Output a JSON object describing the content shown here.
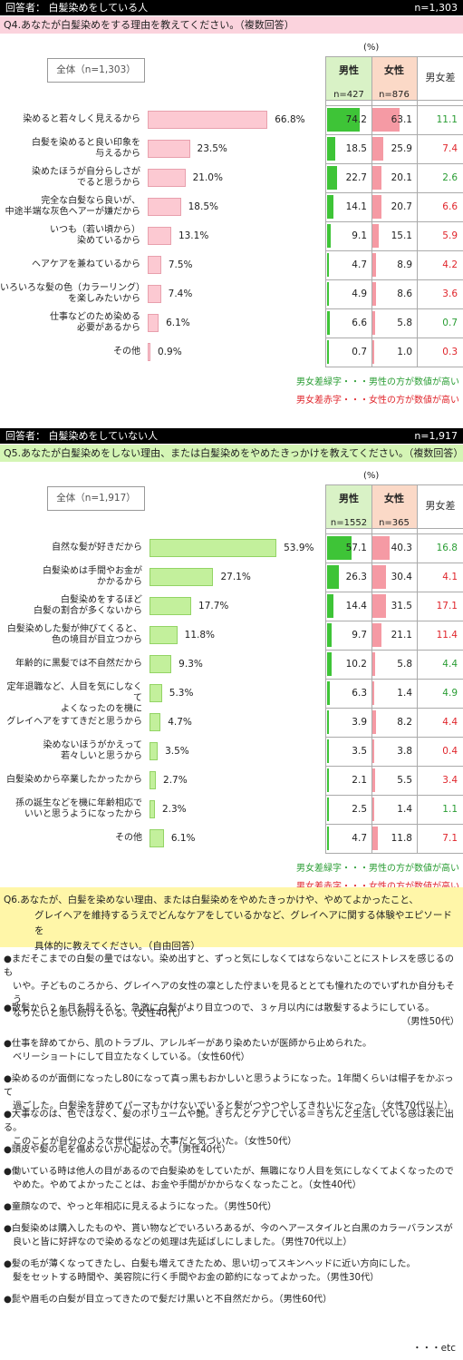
{
  "colors": {
    "male_bar": "#3ec437",
    "female_bar": "#f59aa4",
    "q4_bar": "#fcc9d2",
    "q5_bar": "#c3f09c",
    "diff_male": "#2a9d34",
    "diff_female": "#e0262c"
  },
  "chart_data": [
    {
      "type": "bar",
      "header": {
        "respondents": "回答者： 白髪染めをしている人",
        "n": "n=1,303"
      },
      "title": "Q4.あなたが白髪染めをする理由を教えてください。（複数回答）",
      "unit": "(%)",
      "total_label": "全体（n=1,303）",
      "male_label": "男性",
      "male_n": "n=427",
      "female_label": "女性",
      "female_n": "n=876",
      "diff_label": "男女差",
      "categories": [
        [
          "染めると若々しく見えるから"
        ],
        [
          "白髪を染めると良い印象を",
          "与えるから"
        ],
        [
          "染めたほうが自分らしさが",
          "でると思うから"
        ],
        [
          "完全な白髪なら良いが、",
          "中途半端な灰色ヘアーが嫌だから"
        ],
        [
          "いつも（若い頃から）",
          "染めているから"
        ],
        [
          "ヘアケアを兼ねているから"
        ],
        [
          "いろいろな髪の色（カラーリング）",
          "を楽しみたいから"
        ],
        [
          "仕事などのため染める",
          "必要があるから"
        ],
        [
          "その他"
        ]
      ],
      "total": [
        66.8,
        23.5,
        21.0,
        18.5,
        13.1,
        7.5,
        7.4,
        6.1,
        0.9
      ],
      "total_labels": [
        "66.8%",
        "23.5%",
        "21.0%",
        "18.5%",
        "13.1%",
        "7.5%",
        "7.4%",
        "6.1%",
        "0.9%"
      ],
      "male": [
        74.2,
        18.5,
        22.7,
        14.1,
        9.1,
        4.7,
        4.9,
        6.6,
        0.7
      ],
      "male_labels": [
        "74.2",
        "18.5",
        "22.7",
        "14.1",
        "9.1",
        "4.7",
        "4.9",
        "6.6",
        "0.7"
      ],
      "female": [
        63.1,
        25.9,
        20.1,
        20.7,
        15.1,
        8.9,
        8.6,
        5.8,
        1.0
      ],
      "female_labels": [
        "63.1",
        "25.9",
        "20.1",
        "20.7",
        "15.1",
        "8.9",
        "8.6",
        "5.8",
        "1.0"
      ],
      "diff": [
        11.1,
        7.4,
        2.6,
        6.6,
        5.9,
        4.2,
        3.6,
        0.7,
        0.3
      ],
      "diff_labels": [
        "11.1",
        "7.4",
        "2.6",
        "6.6",
        "5.9",
        "4.2",
        "3.6",
        "0.7",
        "0.3"
      ],
      "diff_higher": [
        "male",
        "female",
        "male",
        "female",
        "female",
        "female",
        "female",
        "male",
        "female"
      ],
      "note_green": "男女差緑字・・・男性の方が数値が高い",
      "note_red": "男女差赤字・・・女性の方が数値が高い"
    },
    {
      "type": "bar",
      "header": {
        "respondents": "回答者： 白髪染めをしていない人",
        "n": "n=1,917"
      },
      "title": "Q5.あなたが白髪染めをしない理由、または白髪染めをやめたきっかけを教えてください。（複数回答）",
      "unit": "(%)",
      "total_label": "全体（n=1,917）",
      "male_label": "男性",
      "male_n": "n=1552",
      "female_label": "女性",
      "female_n": "n=365",
      "diff_label": "男女差",
      "categories": [
        [
          "自然な髪が好きだから"
        ],
        [
          "白髪染めは手間やお金が",
          "かかるから"
        ],
        [
          "白髪染めをするほど",
          "白髪の割合が多くないから"
        ],
        [
          "白髪染めした髪が伸びてくると、",
          "色の境目が目立つから"
        ],
        [
          "年齢的に黒髪では不自然だから"
        ],
        [
          "定年退職など、人目を気にしなくて",
          "よくなったのを機に"
        ],
        [
          "グレイヘアをすてきだと思うから"
        ],
        [
          "染めないほうがかえって",
          "若々しいと思うから"
        ],
        [
          "白髪染めから卒業したかったから"
        ],
        [
          "孫の誕生などを機に年齢相応で",
          "いいと思うようになったから"
        ],
        [
          "その他"
        ]
      ],
      "total": [
        53.9,
        27.1,
        17.7,
        11.8,
        9.3,
        5.3,
        4.7,
        3.5,
        2.7,
        2.3,
        6.1
      ],
      "total_labels": [
        "53.9%",
        "27.1%",
        "17.7%",
        "11.8%",
        "9.3%",
        "5.3%",
        "4.7%",
        "3.5%",
        "2.7%",
        "2.3%",
        "6.1%"
      ],
      "male": [
        57.1,
        26.3,
        14.4,
        9.7,
        10.2,
        6.3,
        3.9,
        3.5,
        2.1,
        2.5,
        4.7
      ],
      "male_labels": [
        "57.1",
        "26.3",
        "14.4",
        "9.7",
        "10.2",
        "6.3",
        "3.9",
        "3.5",
        "2.1",
        "2.5",
        "4.7"
      ],
      "female": [
        40.3,
        30.4,
        31.5,
        21.1,
        5.8,
        1.4,
        8.2,
        3.8,
        5.5,
        1.4,
        11.8
      ],
      "female_labels": [
        "40.3",
        "30.4",
        "31.5",
        "21.1",
        "5.8",
        "1.4",
        "8.2",
        "3.8",
        "5.5",
        "1.4",
        "11.8"
      ],
      "diff": [
        16.8,
        4.1,
        17.1,
        11.4,
        4.4,
        4.9,
        4.4,
        0.4,
        3.4,
        1.1,
        7.1
      ],
      "diff_labels": [
        "16.8",
        "4.1",
        "17.1",
        "11.4",
        "4.4",
        "4.9",
        "4.4",
        "0.4",
        "3.4",
        "1.1",
        "7.1"
      ],
      "diff_higher": [
        "male",
        "female",
        "female",
        "female",
        "male",
        "male",
        "female",
        "female",
        "female",
        "male",
        "female"
      ],
      "note_green": "男女差緑字・・・男性の方が数値が高い",
      "note_red": "男女差赤字・・・女性の方が数値が高い"
    }
  ],
  "q6": {
    "line1": "Q6.あなたが、白髪を染めない理由、または白髪染めをやめたきっかけや、やめてよかったこと、",
    "line2": "グレイヘアを維持するうえでどんなケアをしているかなど、グレイヘアに関する体験やエピソードを",
    "line3": "具体的に教えてください。（自由回答）",
    "comments": [
      {
        "lines": [
          "●まだそこまでの白髪の量ではない。染め出すと、ずっと気にしなくてはならないことにストレスを感じるのも",
          "いや。子どものころから、グレイヘアの女性の凛とした佇まいを見るととても憧れたのでいずれか自分もそう",
          "なりたいと思い続けている。（女性40代）"
        ],
        "who": ""
      },
      {
        "lines": [
          "●散髪から２ヶ月を超えると、急激に白髪がより目立つので、３ヶ月以内には散髪するようにしている。"
        ],
        "who": "（男性50代）"
      },
      {
        "lines": [
          "●仕事を辞めてから、肌のトラブル、アレルギーがあり染めたいが医師から止められた。",
          "ベリーショートにして目立たなくしている。（女性60代）"
        ],
        "who": ""
      },
      {
        "lines": [
          "●染めるのが面倒になったし80になって真っ黒もおかしいと思うようになった。1年間くらいは帽子をかぶって",
          "過ごした。白髪染を辞めてパーマもかけないでいると髪がつやつやしてきれいになった。（女性70代以上）"
        ],
        "who": ""
      },
      {
        "lines": [
          "●大事なのは、色ではなく、髪のボリュームや艶。きちんとケアしている＝きちんと生活している感は表に出る。",
          "このことが自分のような世代には、大事だと気づいた。（女性50代）"
        ],
        "who": ""
      },
      {
        "lines": [
          "●頭皮や髪の毛を傷めないか心配なので。（男性40代）"
        ],
        "who": ""
      },
      {
        "lines": [
          "●働いている時は他人の目があるので白髪染めをしていたが、無職になり人目を気にしなくてよくなったので",
          "やめた。やめてよかったことは、お金や手間がかからなくなったこと。（女性40代）"
        ],
        "who": ""
      },
      {
        "lines": [
          "●童顔なので、やっと年相応に見えるようになった。（男性50代）"
        ],
        "who": ""
      },
      {
        "lines": [
          "●白髪染めは購入したものや、貰い物などでいろいろあるが、今のヘアースタイルと白黒のカラーバランスが",
          "良いと皆に好評なので染めるなどの処理は先延ばしにしました。（男性70代以上）"
        ],
        "who": ""
      },
      {
        "lines": [
          "●髪の毛が薄くなってきたし、白髪も増えてきたため、思い切ってスキンヘッドに近い方向にした。",
          "髪をセットする時間や、美容院に行く手間やお金の節約になってよかった。（男性30代）"
        ],
        "who": ""
      },
      {
        "lines": [
          "●髭や眉毛の白髪が目立ってきたので髪だけ黒いと不自然だから。（男性60代）"
        ],
        "who": ""
      }
    ],
    "etc": "・・・etc"
  }
}
